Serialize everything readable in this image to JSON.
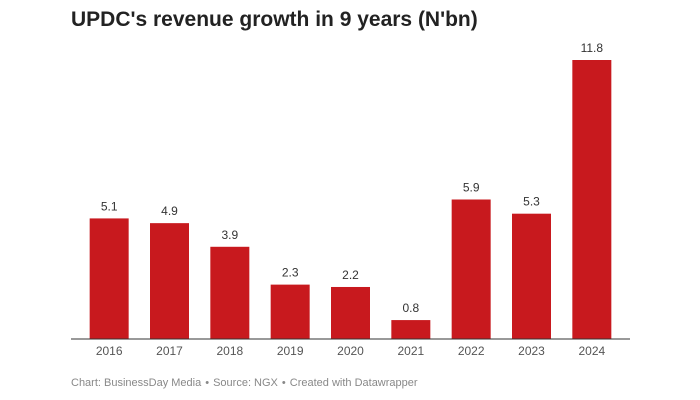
{
  "chart_data": {
    "type": "bar",
    "title": "UPDC's revenue growth in 9 years (N'bn)",
    "categories": [
      "2016",
      "2017",
      "2018",
      "2019",
      "2020",
      "2021",
      "2022",
      "2023",
      "2024"
    ],
    "values": [
      5.1,
      4.9,
      3.9,
      2.3,
      2.2,
      0.8,
      5.9,
      5.3,
      11.8
    ],
    "value_labels": [
      "5.1",
      "4.9",
      "3.9",
      "2.3",
      "2.2",
      "0.8",
      "5.9",
      "5.3",
      "11.8"
    ],
    "xlabel": "",
    "ylabel": "",
    "ylim": [
      0,
      11.8
    ],
    "grid": false,
    "bar_color": "#c8191e"
  },
  "footer": {
    "chart_credit": "Chart: BusinessDay Media",
    "source": "Source: NGX",
    "created_with": "Created with Datawrapper",
    "separator": "•"
  }
}
